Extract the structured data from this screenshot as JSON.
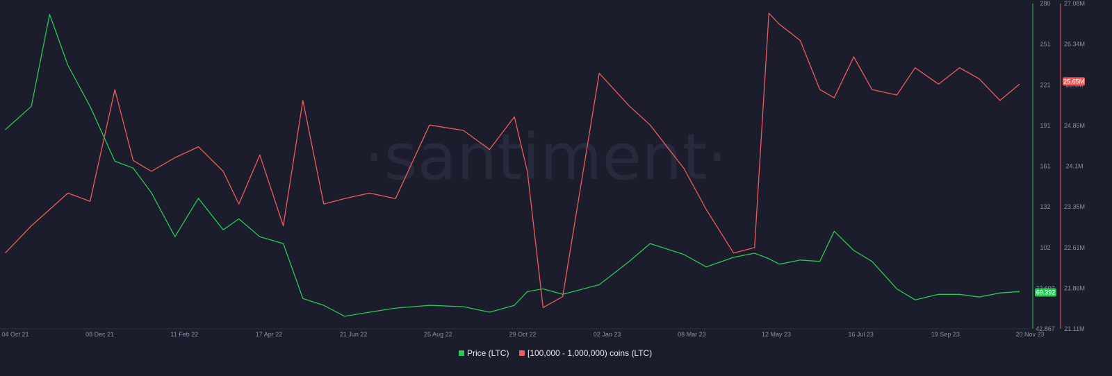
{
  "watermark": "·santiment·",
  "colors": {
    "background": "#1b1d2c",
    "price": "#26c953",
    "holders": "#ef5b5b",
    "axis_text": "#8a8fa3"
  },
  "chart_data": {
    "type": "line",
    "x_labels": [
      "04 Oct 21",
      "08 Dec 21",
      "11 Feb 22",
      "17 Apr 22",
      "21 Jun 22",
      "25 Aug 22",
      "29 Oct 22",
      "02 Jan 23",
      "08 Mar 23",
      "12 May 23",
      "16 Jul 23",
      "19 Sep 23",
      "20 Nov 23"
    ],
    "x": [
      "2021-10-04",
      "2021-10-24",
      "2021-11-07",
      "2021-11-21",
      "2021-12-08",
      "2021-12-27",
      "2022-01-10",
      "2022-01-24",
      "2022-02-11",
      "2022-03-01",
      "2022-03-20",
      "2022-04-01",
      "2022-04-17",
      "2022-05-05",
      "2022-05-20",
      "2022-06-05",
      "2022-06-21",
      "2022-07-10",
      "2022-07-30",
      "2022-08-25",
      "2022-09-20",
      "2022-10-10",
      "2022-10-29",
      "2022-11-08",
      "2022-11-20",
      "2022-12-05",
      "2023-01-02",
      "2023-01-25",
      "2023-02-10",
      "2023-03-08",
      "2023-03-25",
      "2023-04-15",
      "2023-05-01",
      "2023-05-12",
      "2023-05-20",
      "2023-06-05",
      "2023-06-20",
      "2023-07-01",
      "2023-07-16",
      "2023-07-30",
      "2023-08-18",
      "2023-09-01",
      "2023-09-19",
      "2023-10-05",
      "2023-10-20",
      "2023-11-05",
      "2023-11-20"
    ],
    "series": [
      {
        "name": "Price (LTC)",
        "axis": "left",
        "color": "#26c953",
        "values": [
          188,
          205,
          272,
          235,
          205,
          165,
          160,
          142,
          110,
          138,
          115,
          123,
          110,
          105,
          65,
          60,
          52,
          55,
          58,
          60,
          59,
          55,
          60,
          70,
          72,
          68,
          75,
          92,
          105,
          97,
          88,
          95,
          98,
          94,
          90,
          93,
          92,
          114,
          100,
          92,
          72,
          64,
          68,
          68,
          66,
          69,
          70
        ]
      },
      {
        "name": "[100,000  - 1,000,000) coins (LTC)",
        "axis": "right",
        "color": "#ef5b5b",
        "values": [
          22.5,
          23.0,
          23.3,
          23.6,
          23.45,
          25.5,
          24.2,
          24.0,
          24.25,
          24.45,
          24.0,
          23.4,
          24.3,
          23.0,
          25.3,
          23.4,
          23.5,
          23.6,
          23.5,
          24.85,
          24.75,
          24.4,
          25.0,
          24.0,
          21.5,
          21.7,
          25.8,
          25.2,
          24.85,
          24.05,
          23.3,
          22.5,
          22.6,
          26.9,
          26.7,
          26.4,
          25.5,
          25.35,
          26.1,
          25.5,
          25.4,
          25.9,
          25.6,
          25.9,
          25.7,
          25.3,
          25.6
        ]
      }
    ],
    "y_left": {
      "ticks": [
        "280",
        "251",
        "221",
        "191",
        "161",
        "132",
        "102",
        "72.607",
        "42.867"
      ],
      "ylim": [
        42.867,
        280
      ]
    },
    "y_right": {
      "ticks": [
        "27.08M",
        "26.34M",
        "25.6M",
        "24.85M",
        "24.1M",
        "23.35M",
        "22.61M",
        "21.86M",
        "21.11M"
      ],
      "ylim": [
        21.11,
        27.08
      ]
    },
    "price_badge": "69.392",
    "holders_badge": "25.65M",
    "legend": [
      {
        "label": "Price (LTC)",
        "color": "#26c953"
      },
      {
        "label": "[100,000  - 1,000,000) coins (LTC)",
        "color": "#ef5b5b"
      }
    ],
    "grid": false,
    "legend_position": "bottom-center"
  }
}
